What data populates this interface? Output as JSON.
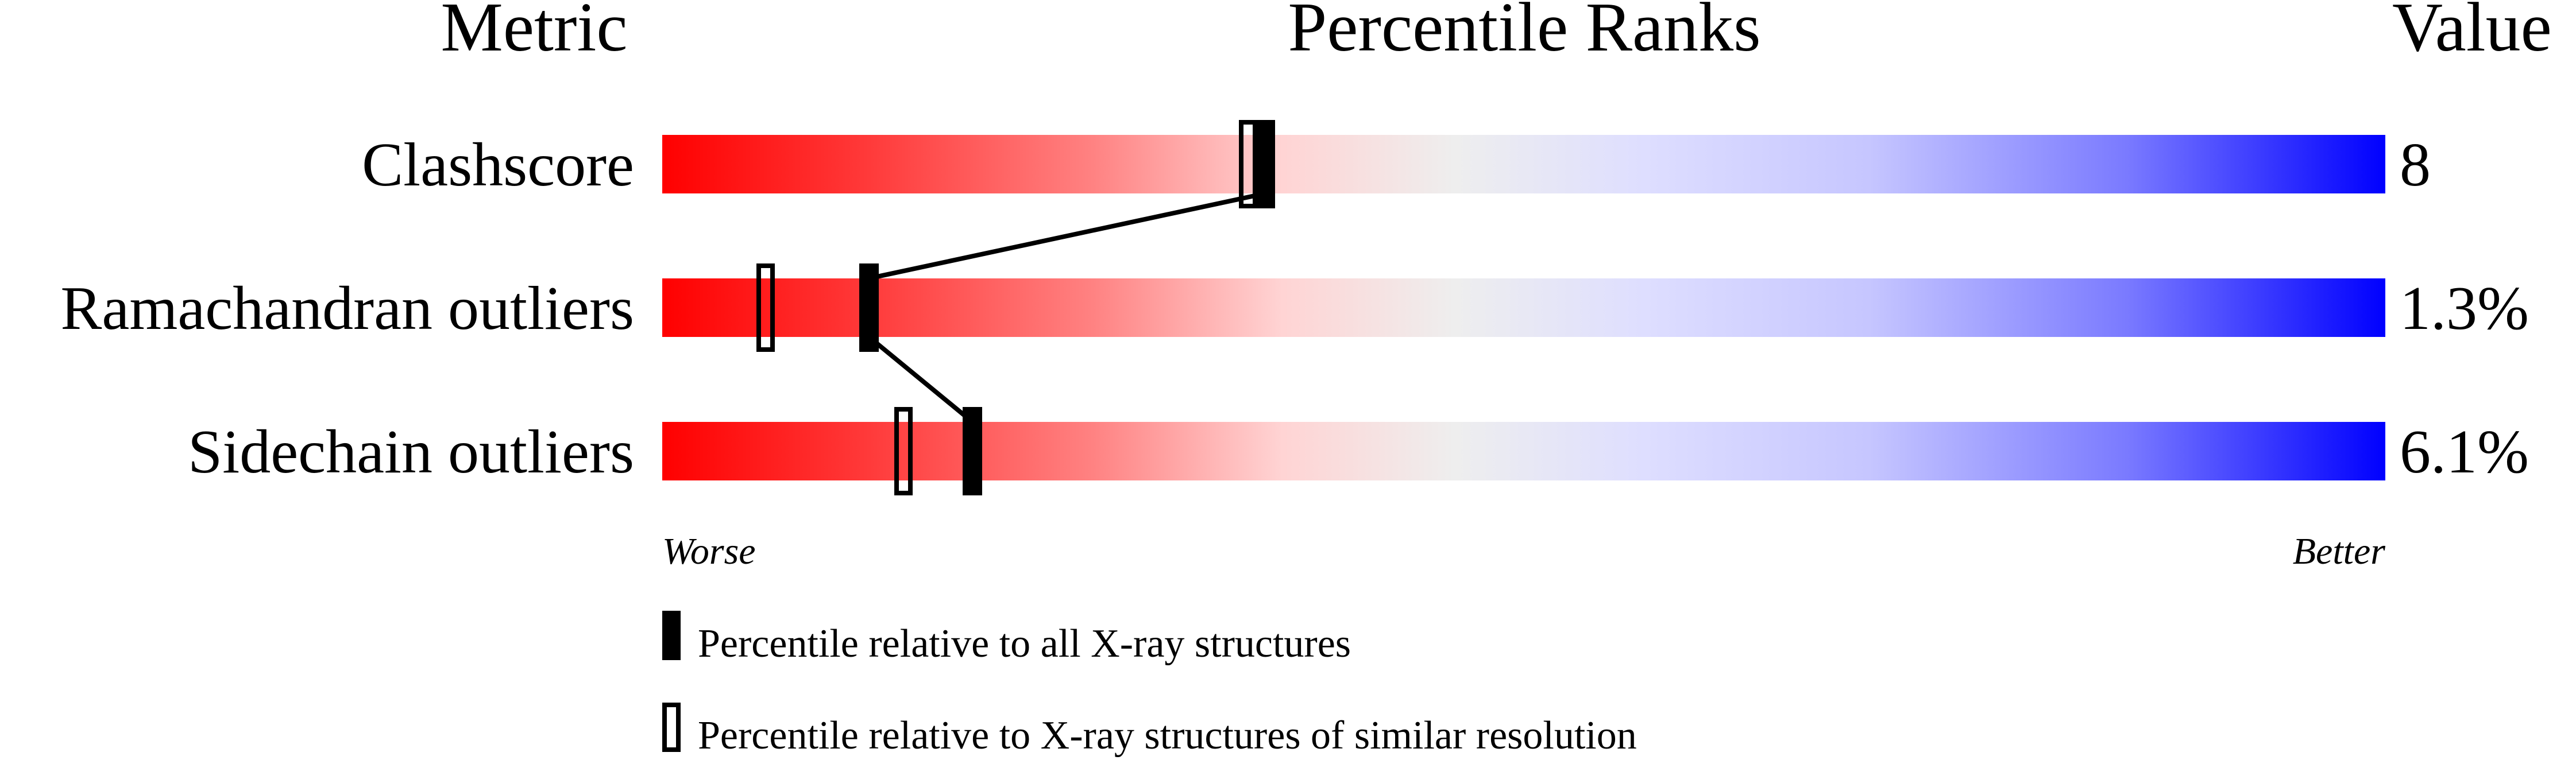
{
  "chart_data": {
    "type": "percentile-bar",
    "headers": {
      "metric": "Metric",
      "ranks": "Percentile Ranks",
      "value": "Value"
    },
    "xlim": [
      0,
      100
    ],
    "gradient_colors": {
      "worse": "#ff0000",
      "middle": "#eeeeee",
      "better": "#0000ff"
    },
    "rows": [
      {
        "metric": "Clashscore",
        "value": "8",
        "percentile_all": 35,
        "percentile_similar": 34
      },
      {
        "metric": "Ramachandran outliers",
        "value": "1.3%",
        "percentile_all": 12,
        "percentile_similar": 6
      },
      {
        "metric": "Sidechain outliers",
        "value": "6.1%",
        "percentile_all": 18,
        "percentile_similar": 14
      }
    ],
    "axis_labels": {
      "left": "Worse",
      "right": "Better"
    },
    "legend": [
      {
        "marker": "filled",
        "label": "Percentile relative to all X-ray structures"
      },
      {
        "marker": "open",
        "label": "Percentile relative to X-ray structures of similar resolution"
      }
    ]
  }
}
